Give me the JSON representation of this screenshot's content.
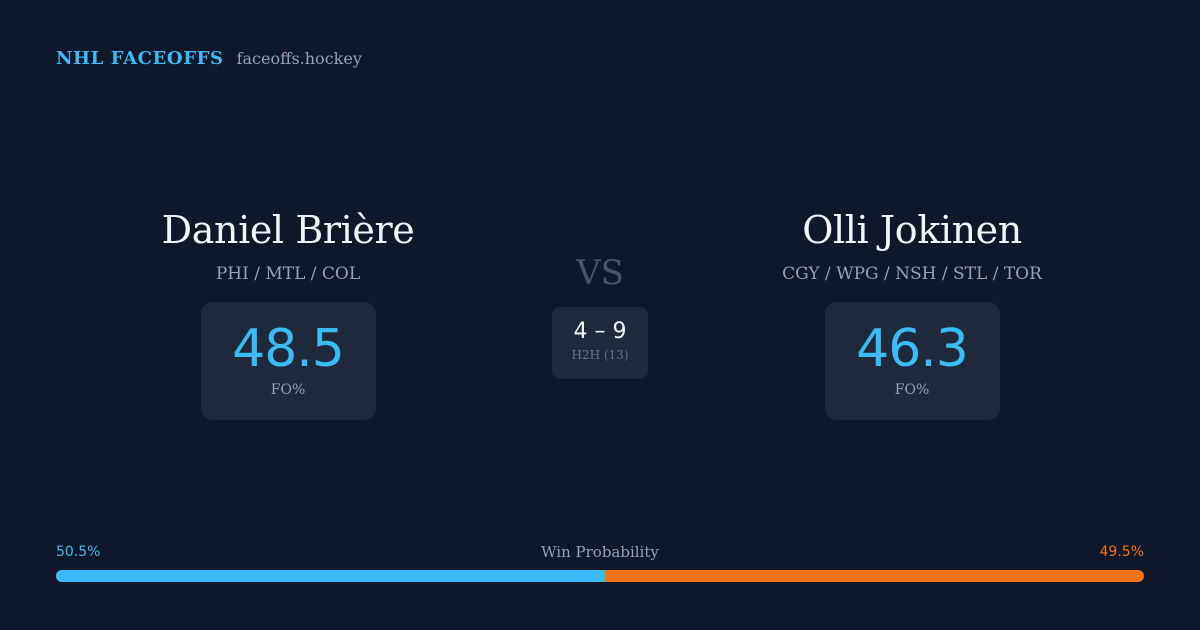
{
  "brand": {
    "name": "NHL FACEOFFS",
    "domain": "faceoffs.hockey"
  },
  "player_left": {
    "name": "Daniel Brière",
    "teams": "PHI / MTL / COL",
    "fo_pct": "48.5",
    "fo_label": "FO%"
  },
  "player_right": {
    "name": "Olli Jokinen",
    "teams": "CGY / WPG / NSH / STL / TOR",
    "fo_pct": "46.3",
    "fo_label": "FO%"
  },
  "vs_label": "VS",
  "h2h": {
    "score": "4 – 9",
    "label": "H2H (13)"
  },
  "win_probability": {
    "title": "Win Probability",
    "left_label": "50.5%",
    "right_label": "49.5%",
    "left_value": 50.5,
    "right_value": 49.5,
    "left_color": "#38bdf8",
    "right_color": "#f97316"
  }
}
